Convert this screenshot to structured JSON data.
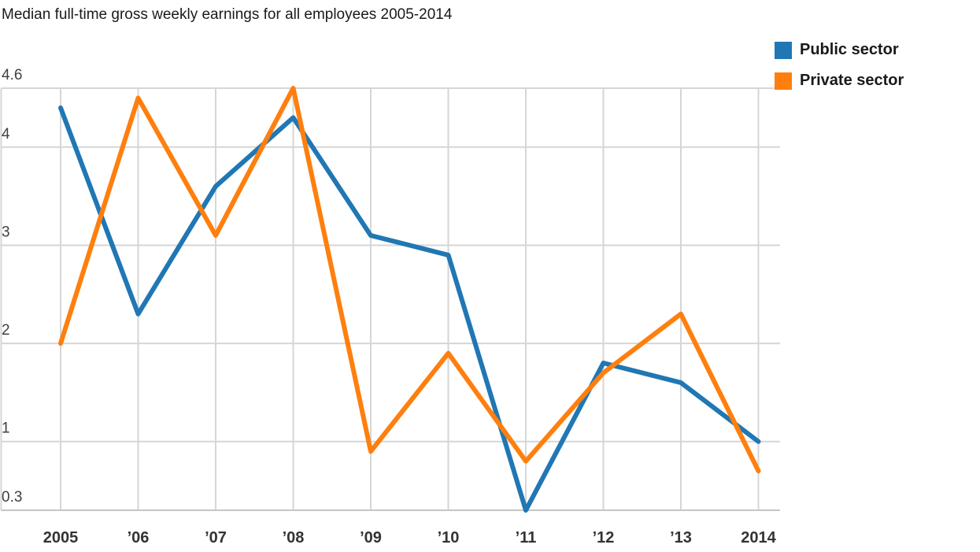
{
  "chart_data": {
    "type": "line",
    "title": "Median full-time gross weekly earnings for all employees 2005-2014",
    "categories": [
      "2005",
      "’06",
      "’07",
      "’08",
      "’09",
      "’10",
      "’11",
      "’12",
      "’13",
      "2014"
    ],
    "x_years": [
      2005,
      2006,
      2007,
      2008,
      2009,
      2010,
      2011,
      2012,
      2013,
      2014
    ],
    "series": [
      {
        "name": "Public sector",
        "color": "#2077b4",
        "values": [
          4.4,
          2.3,
          3.6,
          4.3,
          3.1,
          2.9,
          0.3,
          1.8,
          1.6,
          1.0
        ]
      },
      {
        "name": "Private sector",
        "color": "#ff7f0e",
        "values": [
          2.0,
          4.5,
          3.1,
          4.6,
          0.9,
          1.9,
          0.8,
          1.7,
          2.3,
          0.7
        ]
      }
    ],
    "y_ticks": [
      "4.6",
      "4",
      "3",
      "2",
      "1",
      "0.3"
    ],
    "y_tick_values": [
      4.6,
      4,
      3,
      2,
      1,
      0.3
    ],
    "ylim": [
      0.3,
      4.6
    ],
    "grid": true,
    "legend_position": "top-right",
    "grid_color": "#d6d6d6",
    "axis_line_color": "#c6c6c6",
    "y_label_color": "#404040",
    "x_label_color": "#333333"
  }
}
